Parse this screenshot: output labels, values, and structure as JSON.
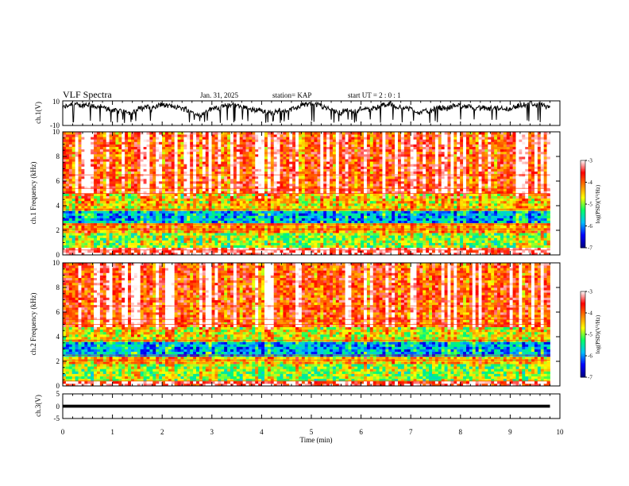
{
  "header": {
    "title": "VLF Spectra",
    "date": "Jan. 31, 2025",
    "station": "station= KAP",
    "start_ut": "start UT =  2 : 0  : 1"
  },
  "chart_data": [
    {
      "type": "line",
      "panel": "ch1-waveform",
      "ylabel": "ch.1(V)",
      "ylim": [
        -10,
        10
      ],
      "y_ticklabels": [
        "10",
        "-10"
      ],
      "xlim": [
        0,
        10
      ],
      "data_xrange": [
        0,
        9.8
      ],
      "mean_level": 4,
      "amplitude_range": [
        -8,
        10
      ]
    },
    {
      "type": "heatmap",
      "panel": "ch1-spectrogram",
      "ylabel": "ch.1\nFrequency (kHz)",
      "ylim": [
        0,
        10
      ],
      "y_ticklabels": [
        "0",
        "2",
        "4",
        "6",
        "8",
        "10"
      ],
      "xlim": [
        0,
        10
      ],
      "data_xrange": [
        0,
        9.8
      ],
      "colorbar": {
        "title": "log(PSD)(V²/Hz)",
        "range": [
          -7,
          -3
        ],
        "ticklabels": [
          "-3",
          "-4",
          "-5",
          "-6",
          "-7"
        ]
      },
      "band_structure": [
        {
          "freq_khz": [
            0,
            0.6
          ],
          "level": -3.3
        },
        {
          "freq_khz": [
            0.6,
            1.8
          ],
          "level": -5.0
        },
        {
          "freq_khz": [
            1.8,
            2.6
          ],
          "level": -4.3
        },
        {
          "freq_khz": [
            2.6,
            3.6
          ],
          "level": -5.9
        },
        {
          "freq_khz": [
            3.6,
            5.0
          ],
          "level": -4.6
        },
        {
          "freq_khz": [
            5.0,
            10.0
          ],
          "level": -3.8
        }
      ]
    },
    {
      "type": "heatmap",
      "panel": "ch2-spectrogram",
      "ylabel": "ch.2\nFrequency (kHz)",
      "ylim": [
        0,
        10
      ],
      "y_ticklabels": [
        "0",
        "2",
        "4",
        "6",
        "8",
        "10"
      ],
      "xlim": [
        0,
        10
      ],
      "data_xrange": [
        0,
        9.8
      ],
      "colorbar": {
        "title": "log(PSD)(V²/Hz)",
        "range": [
          -7,
          -3
        ],
        "ticklabels": [
          "-3",
          "-4",
          "-5",
          "-6",
          "-7"
        ]
      },
      "band_structure": [
        {
          "freq_khz": [
            0,
            0.5
          ],
          "level": -3.4
        },
        {
          "freq_khz": [
            0.5,
            1.9
          ],
          "level": -5.0
        },
        {
          "freq_khz": [
            1.9,
            2.5
          ],
          "level": -4.4
        },
        {
          "freq_khz": [
            2.5,
            3.6
          ],
          "level": -5.9
        },
        {
          "freq_khz": [
            3.6,
            4.8
          ],
          "level": -4.7
        },
        {
          "freq_khz": [
            4.8,
            10.0
          ],
          "level": -3.8
        }
      ]
    },
    {
      "type": "line",
      "panel": "ch3-waveform",
      "ylabel": "ch.3(V)",
      "ylim": [
        -5,
        5
      ],
      "y_ticklabels": [
        "5",
        "0",
        "-5"
      ],
      "xlim": [
        0,
        10
      ],
      "data_xrange": [
        0,
        9.8
      ],
      "trace_band": [
        -0.6,
        0.6
      ]
    }
  ],
  "x_axis": {
    "label": "Time (min)",
    "ticklabels": [
      "0",
      "1",
      "2",
      "3",
      "4",
      "5",
      "6",
      "7",
      "8",
      "9",
      "10"
    ]
  },
  "colors": {
    "colormap": [
      "#000080",
      "#0000ff",
      "#00bfff",
      "#00ff66",
      "#ffff00",
      "#ff8000",
      "#ff0000",
      "#ffffff"
    ],
    "trace": "#000000"
  }
}
